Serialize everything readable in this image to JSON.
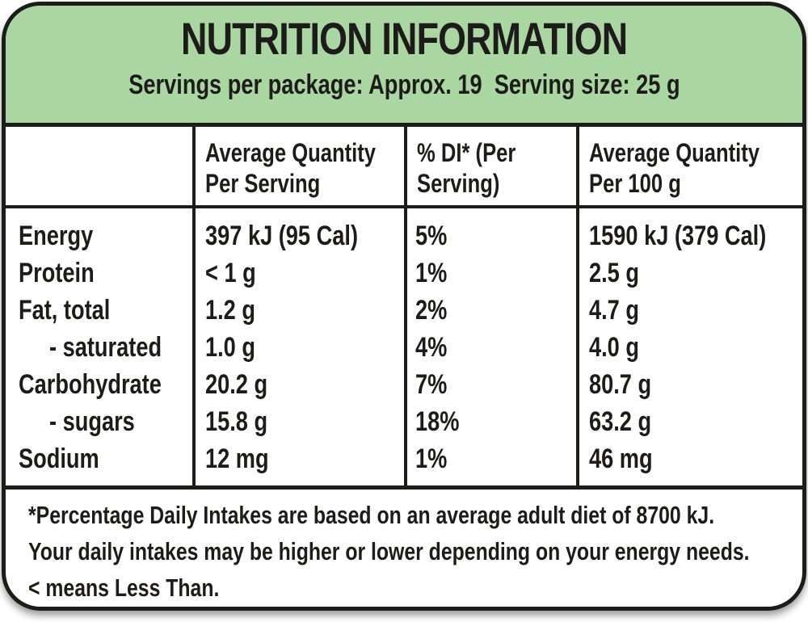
{
  "colors": {
    "header_bg": "#aad6a1",
    "border_and_text": "#1d1c1a",
    "panel_bg": "#ffffff"
  },
  "header": {
    "title": "NUTRITION INFORMATION",
    "servings_line": "Servings per package: Approx. 19  Serving size: 25 g"
  },
  "table": {
    "col_headers": [
      {
        "line1": "",
        "line2": ""
      },
      {
        "line1": "Average Quantity",
        "line2": "Per Serving"
      },
      {
        "line1": "% DI* (Per",
        "line2": "Serving)"
      },
      {
        "line1": "Average Quantity",
        "line2": "Per 100 g"
      }
    ],
    "rows": [
      {
        "nutrient": "Energy",
        "per_serving": "397 kJ (95 Cal)",
        "di": "5%",
        "per_100g": "1590 kJ (379 Cal)"
      },
      {
        "nutrient": "Protein",
        "per_serving": "< 1 g",
        "di": "1%",
        "per_100g": "2.5 g"
      },
      {
        "nutrient": "Fat, total",
        "per_serving": "1.2 g",
        "di": "2%",
        "per_100g": "4.7 g"
      },
      {
        "nutrient": "- saturated",
        "per_serving": "1.0 g",
        "di": "4%",
        "per_100g": "4.0 g"
      },
      {
        "nutrient": "Carbohydrate",
        "per_serving": "20.2 g",
        "di": "7%",
        "per_100g": "80.7 g"
      },
      {
        "nutrient": "- sugars",
        "per_serving": "15.8 g",
        "di": "18%",
        "per_100g": "63.2 g"
      },
      {
        "nutrient": "Sodium",
        "per_serving": "12 mg",
        "di": "1%",
        "per_100g": "46 mg"
      }
    ]
  },
  "footnote": {
    "lines": [
      "*Percentage Daily Intakes are based on an average adult diet of 8700 kJ.",
      "Your daily intakes may be higher or lower depending on your energy needs.",
      "< means Less Than."
    ]
  }
}
